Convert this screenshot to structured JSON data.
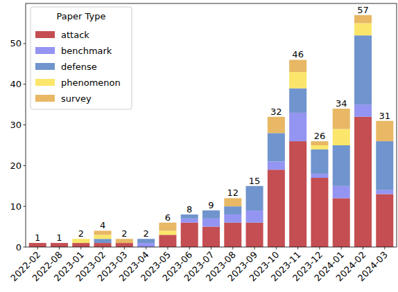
{
  "chart_data": {
    "type": "bar",
    "stacked": true,
    "categories": [
      "2022-02",
      "2022-08",
      "2023-01",
      "2023-02",
      "2023-03",
      "2023-04",
      "2023-05",
      "2023-06",
      "2023-07",
      "2023-08",
      "2023-09",
      "2023-10",
      "2023-11",
      "2023-12",
      "2024-01",
      "2024-02",
      "2024-03"
    ],
    "series": [
      {
        "name": "attack",
        "color": "#c44e52",
        "values": [
          1,
          1,
          1,
          1,
          1,
          0,
          3,
          6,
          5,
          6,
          6,
          19,
          26,
          17,
          12,
          32,
          13
        ]
      },
      {
        "name": "benchmark",
        "color": "#9494f2",
        "values": [
          0,
          0,
          0,
          0,
          0,
          1,
          0,
          1,
          2,
          2,
          3,
          2,
          7,
          1,
          3,
          3,
          1
        ]
      },
      {
        "name": "defense",
        "color": "#7094cd",
        "values": [
          0,
          0,
          0,
          1,
          0,
          1,
          0,
          1,
          2,
          2,
          6,
          7,
          6,
          6,
          10,
          17,
          12
        ]
      },
      {
        "name": "phenomenon",
        "color": "#fbe66b",
        "values": [
          0,
          0,
          1,
          1,
          0,
          0,
          1,
          0,
          0,
          0,
          0,
          0,
          4,
          1,
          4,
          3,
          0
        ]
      },
      {
        "name": "survey",
        "color": "#e8b865",
        "values": [
          0,
          0,
          0,
          1,
          1,
          0,
          2,
          0,
          0,
          2,
          0,
          4,
          3,
          1,
          5,
          2,
          5
        ]
      }
    ],
    "totals": [
      1,
      1,
      2,
      4,
      2,
      2,
      6,
      8,
      9,
      12,
      15,
      32,
      46,
      26,
      34,
      57,
      31
    ],
    "legend_title": "Paper Type",
    "legend": "upper left",
    "ylim": [
      0,
      59.85
    ],
    "yticks": [
      0,
      10,
      20,
      30,
      40,
      50
    ],
    "grid": false
  }
}
